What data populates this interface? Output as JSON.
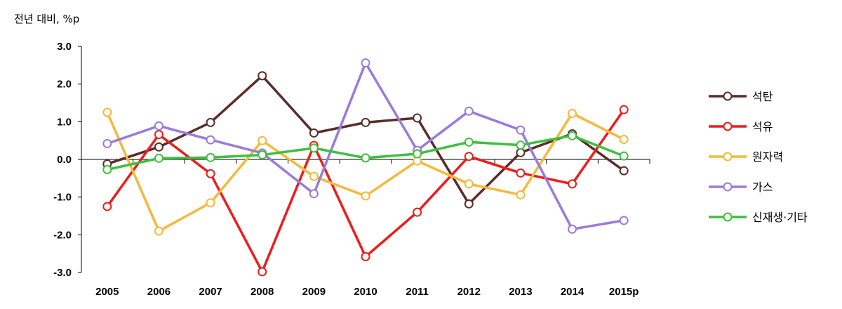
{
  "chart_data": {
    "type": "line",
    "unit_label": "전년 대비, %p",
    "categories": [
      "2005",
      "2006",
      "2007",
      "2008",
      "2009",
      "2010",
      "2011",
      "2012",
      "2013",
      "2014",
      "2015p"
    ],
    "ylim": [
      -3.0,
      3.0
    ],
    "yticks": [
      "3.0",
      "2.0",
      "1.0",
      "0.0",
      "-1.0",
      "-2.0",
      "-3.0"
    ],
    "ytick_values": [
      3,
      2,
      1,
      0,
      -1,
      -2,
      -3
    ],
    "legend_position": "right",
    "series": [
      {
        "name": "석탄",
        "color": "#5b2d28",
        "values": [
          -0.12,
          0.33,
          0.98,
          2.22,
          0.7,
          0.98,
          1.1,
          -1.18,
          0.18,
          0.68,
          -0.3
        ]
      },
      {
        "name": "석유",
        "color": "#ee1c1c",
        "values": [
          -1.25,
          0.66,
          -0.38,
          -2.98,
          0.37,
          -2.58,
          -1.4,
          0.08,
          -0.36,
          -0.65,
          1.32
        ]
      },
      {
        "name": "원자력",
        "color": "#f6b93b",
        "values": [
          1.25,
          -1.9,
          -1.15,
          0.5,
          -0.45,
          -0.97,
          -0.04,
          -0.65,
          -0.94,
          1.22,
          0.53
        ]
      },
      {
        "name": "가스",
        "color": "#9b7bd8",
        "values": [
          0.42,
          0.89,
          0.52,
          0.17,
          -0.91,
          2.56,
          0.24,
          1.28,
          0.78,
          -1.85,
          -1.62
        ]
      },
      {
        "name": "신재생·기타",
        "color": "#3fbf3f",
        "values": [
          -0.27,
          0.03,
          0.05,
          0.12,
          0.3,
          0.04,
          0.15,
          0.46,
          0.38,
          0.63,
          0.09
        ]
      }
    ]
  }
}
